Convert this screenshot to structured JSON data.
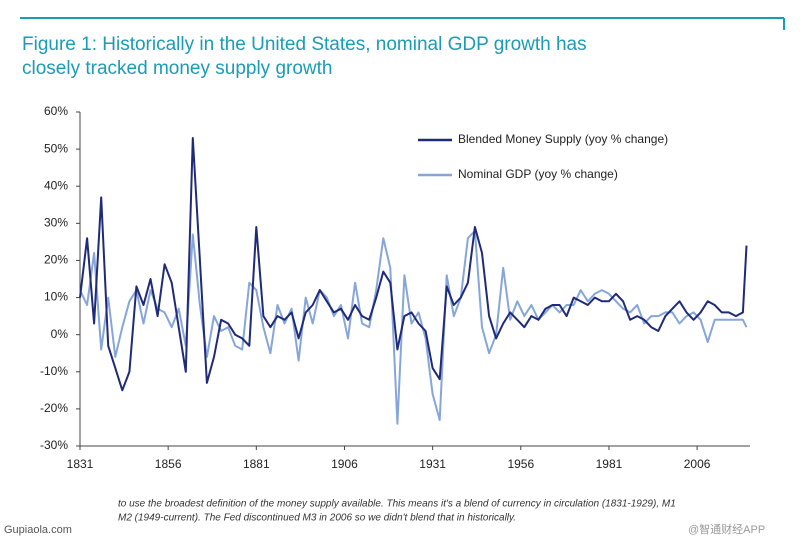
{
  "chart_data": {
    "type": "line",
    "title": "Figure 1: Historically in the United States, nominal GDP growth has closely tracked money supply growth",
    "x": [
      1831,
      1833,
      1835,
      1837,
      1839,
      1841,
      1843,
      1845,
      1847,
      1849,
      1851,
      1853,
      1855,
      1857,
      1859,
      1861,
      1863,
      1865,
      1867,
      1869,
      1871,
      1873,
      1875,
      1877,
      1879,
      1881,
      1883,
      1885,
      1887,
      1889,
      1891,
      1893,
      1895,
      1897,
      1899,
      1901,
      1903,
      1905,
      1907,
      1909,
      1911,
      1913,
      1915,
      1917,
      1919,
      1921,
      1923,
      1925,
      1927,
      1929,
      1931,
      1933,
      1935,
      1937,
      1939,
      1941,
      1943,
      1945,
      1947,
      1949,
      1951,
      1953,
      1955,
      1957,
      1959,
      1961,
      1963,
      1965,
      1967,
      1969,
      1971,
      1973,
      1975,
      1977,
      1979,
      1981,
      1983,
      1985,
      1987,
      1989,
      1991,
      1993,
      1995,
      1997,
      1999,
      2001,
      2003,
      2005,
      2007,
      2009,
      2011,
      2013,
      2015,
      2017,
      2019,
      2020
    ],
    "series": [
      {
        "name": "Blended Money Supply (yoy % change)",
        "color": "#1f2a78",
        "values": [
          10,
          26,
          3,
          37,
          -3,
          -9,
          -15,
          -10,
          13,
          8,
          15,
          5,
          19,
          14,
          2,
          -10,
          53,
          20,
          -13,
          -6,
          4,
          3,
          0,
          -1,
          -3,
          29,
          5,
          2,
          5,
          4,
          6,
          -1,
          6,
          8,
          12,
          9,
          6,
          7,
          4,
          8,
          5,
          4,
          10,
          17,
          14,
          -4,
          5,
          6,
          3,
          1,
          -9,
          -12,
          13,
          8,
          10,
          14,
          29,
          22,
          5,
          -1,
          3,
          6,
          4,
          2,
          5,
          4,
          7,
          8,
          8,
          5,
          10,
          9,
          8,
          10,
          9,
          9,
          11,
          9,
          4,
          5,
          4,
          2,
          1,
          5,
          7,
          9,
          6,
          4,
          6,
          9,
          8,
          6,
          6,
          5,
          6,
          24
        ]
      },
      {
        "name": "Nominal GDP (yoy % change)",
        "color": "#86a6da",
        "values": [
          12,
          8,
          22,
          -4,
          10,
          -6,
          2,
          9,
          12,
          3,
          12,
          7,
          6,
          2,
          7,
          -3,
          27,
          8,
          -6,
          5,
          1,
          2,
          -3,
          -4,
          14,
          12,
          2,
          -5,
          8,
          3,
          7,
          -7,
          10,
          3,
          12,
          10,
          5,
          8,
          -1,
          14,
          3,
          2,
          12,
          26,
          18,
          -24,
          16,
          3,
          6,
          -1,
          -16,
          -23,
          16,
          5,
          10,
          26,
          28,
          2,
          -5,
          0,
          18,
          4,
          9,
          5,
          8,
          4,
          6,
          8,
          6,
          8,
          8,
          12,
          9,
          11,
          12,
          11,
          9,
          7,
          6,
          8,
          3,
          5,
          5,
          6,
          6,
          3,
          5,
          6,
          4,
          -2,
          4,
          4,
          4,
          4,
          4,
          2
        ]
      }
    ],
    "xlim": [
      1831,
      2021
    ],
    "xticks": [
      1831,
      1856,
      1881,
      1906,
      1931,
      1956,
      1981,
      2006
    ],
    "ylim": [
      -30,
      60
    ],
    "yticks": [
      {
        "value": -30,
        "label": "-30%"
      },
      {
        "value": -20,
        "label": "-20%"
      },
      {
        "value": -10,
        "label": "-10%"
      },
      {
        "value": 0,
        "label": "0%"
      },
      {
        "value": 10,
        "label": "10%"
      },
      {
        "value": 20,
        "label": "20%"
      },
      {
        "value": 30,
        "label": "30%"
      },
      {
        "value": 40,
        "label": "40%"
      },
      {
        "value": 50,
        "label": "50%"
      },
      {
        "value": 60,
        "label": "60%"
      }
    ],
    "grid": false,
    "legend": "top-right"
  },
  "footnote": {
    "line1": "to use the broadest definition of the money supply available. This means it's a blend of currency in circulation (1831-1929), M1",
    "line2": "M2 (1949-current). The Fed discontinued M3 in 2006 so we didn't blend that in historically."
  },
  "watermark": {
    "site": "Gupiaola.com",
    "app": "@智通财经APP"
  }
}
